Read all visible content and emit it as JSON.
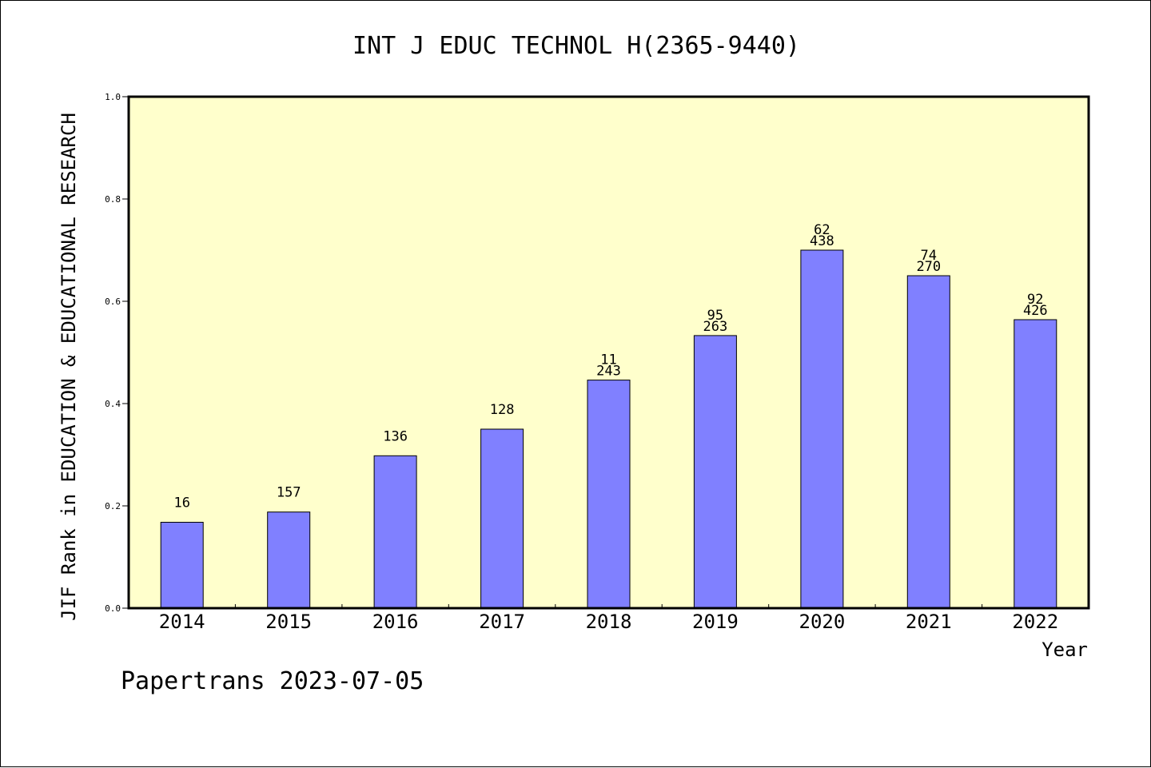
{
  "footer": "Papertrans 2023-07-05",
  "colors": {
    "plot_background": "#ffffcc",
    "bar_fill": "#8080ff",
    "bar_stroke": "#000000"
  },
  "chart_data": {
    "type": "bar",
    "title": "INT J EDUC TECHNOL H(2365-9440)",
    "xlabel": "Year",
    "ylabel": "JIF Rank in EDUCATION & EDUCATIONAL RESEARCH",
    "ylim": [
      0,
      1.0
    ],
    "yticks": [
      "0.0",
      "0.2",
      "0.4",
      "0.6",
      "0.8",
      "1.0"
    ],
    "grid": false,
    "categories": [
      "2014",
      "2015",
      "2016",
      "2017",
      "2018",
      "2019",
      "2020",
      "2021",
      "2022"
    ],
    "values": [
      0.168,
      0.188,
      0.298,
      0.35,
      0.446,
      0.533,
      0.7,
      0.65,
      0.564
    ],
    "bar_labels": [
      [
        "16"
      ],
      [
        "157"
      ],
      [
        "136"
      ],
      [
        "128"
      ],
      [
        "11",
        "243"
      ],
      [
        "95",
        "263"
      ],
      [
        "62",
        "438"
      ],
      [
        "74",
        "270"
      ],
      [
        "92",
        "426"
      ]
    ]
  }
}
